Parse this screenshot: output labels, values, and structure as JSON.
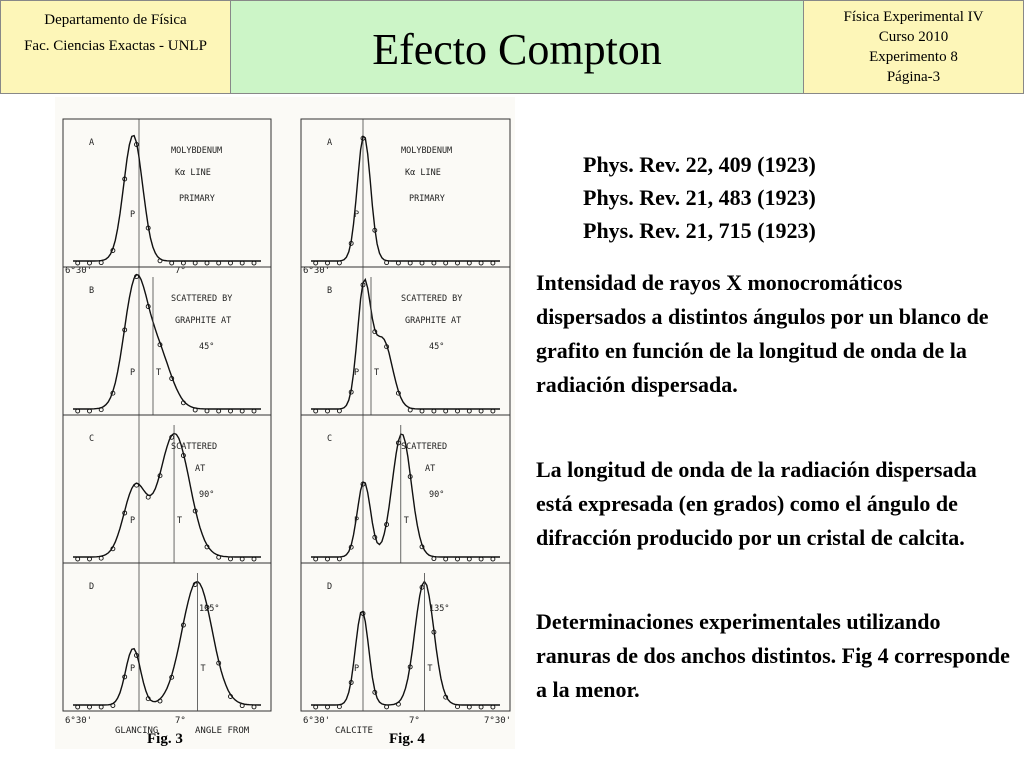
{
  "header": {
    "left_line1": "Departamento de Física",
    "left_line2": "Fac. Ciencias Exactas - UNLP",
    "title": "Efecto Compton",
    "right_line1": "Física Experimental IV",
    "right_line2": "Curso 2010",
    "right_line3": "Experimento 8",
    "right_line4": "Página-3"
  },
  "references": [
    "Phys. Rev. 22, 409 (1923)",
    "Phys. Rev. 21, 483 (1923)",
    "Phys. Rev. 21, 715 (1923)"
  ],
  "paragraphs": [
    "Intensidad de rayos X monocromáticos dispersados a distintos ángulos  por un blanco de grafito en función de la longitud de onda de la radiación dispersada.",
    "La longitud de onda de la radiación dispersada está expresada (en grados) como el ángulo de difracción producido por un cristal de calcita.",
    "Determinaciones experimentales utilizando ranuras de dos anchos distintos. Fig 4 corresponde a la menor."
  ],
  "figure": {
    "fig3_caption": "Fig. 3",
    "fig4_caption": "Fig. 4",
    "panels": [
      {
        "letter": "A",
        "line1": "MOLYBDENUM",
        "line2": "Kα LINE",
        "line3": "PRIMARY"
      },
      {
        "letter": "B",
        "line1": "SCATTERED BY",
        "line2": "GRAPHITE AT",
        "line3": "45°"
      },
      {
        "letter": "C",
        "line1": "SCATTERED",
        "line2": "AT",
        "line3": "90°"
      },
      {
        "letter": "D",
        "line1": "",
        "line2": "",
        "line3": "135°"
      }
    ],
    "marker_p": "P",
    "marker_t": "T",
    "tick_start": "6°30'",
    "tick_mid": "7°",
    "tick_end": "7°30'",
    "axis_left": "GLANCING",
    "axis_mid": "CALCITE",
    "axis_right": "ANGLE FROM"
  }
}
